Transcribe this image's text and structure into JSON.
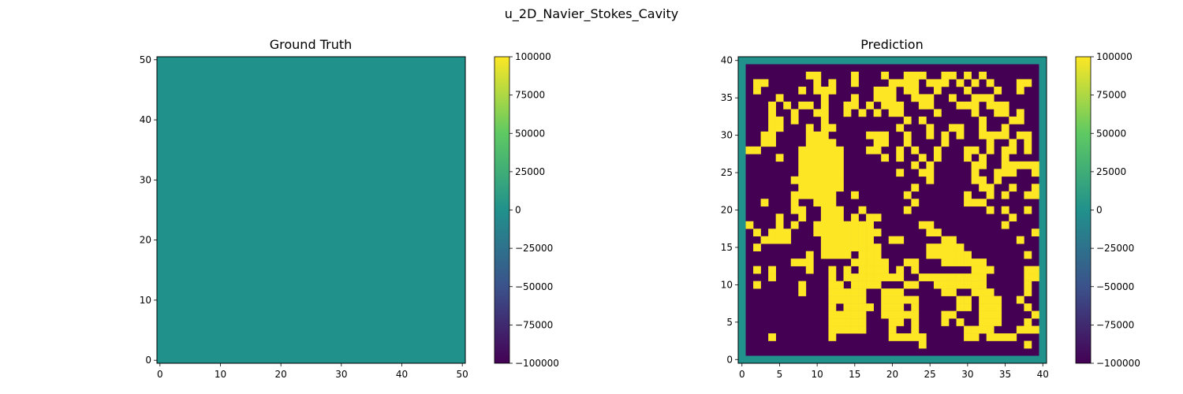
{
  "figure": {
    "title": "u_2D_Navier_Stokes_Cavity"
  },
  "colormap": {
    "name": "viridis",
    "stops": [
      "#440154",
      "#3b528b",
      "#21918c",
      "#5ec962",
      "#fde725"
    ]
  },
  "chart_data": [
    {
      "type": "heatmap",
      "title": "Ground Truth",
      "xlim": [
        -0.5,
        50.5
      ],
      "ylim": [
        -0.5,
        50.5
      ],
      "xticks": [
        0,
        10,
        20,
        30,
        40,
        50
      ],
      "yticks": [
        0,
        10,
        20,
        30,
        40,
        50
      ],
      "grid_size": [
        51,
        51
      ],
      "uniform_value": 0,
      "colorbar": {
        "vmin": -100000,
        "vmax": 100000,
        "ticks": [
          100000,
          75000,
          50000,
          25000,
          0,
          -25000,
          -50000,
          -75000,
          -100000
        ],
        "tick_labels": [
          "100000",
          "75000",
          "50000",
          "25000",
          "0",
          "−25000",
          "−50000",
          "−75000",
          "−100000"
        ]
      }
    },
    {
      "type": "heatmap",
      "title": "Prediction",
      "xlim": [
        -0.5,
        40.5
      ],
      "ylim": [
        -0.5,
        40.5
      ],
      "xticks": [
        0,
        5,
        10,
        15,
        20,
        25,
        30,
        35,
        40
      ],
      "yticks": [
        0,
        5,
        10,
        15,
        20,
        25,
        30,
        35,
        40
      ],
      "grid_size": [
        41,
        41
      ],
      "border_value": 0,
      "interior_low": -100000,
      "interior_high": 100000,
      "high_cells_rows_top_to_bottom": [
        "......",
        "........XX....X...X..XXX..XX.X.X.......",
        ".XX......X.X..X....XXXX.XXX.X.X.X...XX.",
        ".X.....X.XXX.....XXX.XX..X...X...X..X..",
        "....X.....X...X..XXX..XXX..X..XXX......",
        "...X.X.XX.X..XX.X.XXX..XX...XXX.XXX....",
        "...X..X..XX..X.X.X.XX....X....X..XX.X..",
        "...XX.X...X..........X.X.......X...XX..",
        "...XX...X.XX........X...X..XX..X..X....",
        "..XX....XXX.....XXX..X..X.X.X..XXXX.XX.",
        "..XX....XXXX.....XX..X....X.....X..X.X.",
        "XX.....XXXXXX...XX..X.X..X...XX.X.XX.X.",
        "....X..XXXXXX.....X.X..X.X...X.X..X....",
        ".......XXXXXX.........X.X.....XX..XXXXX",
        ".......XXXXXX.......X..XX.....X..XXX..X",
        "......XXXXXXX...........X.....XX.X.....",
        ".......XXXXXX.........X........XX..X..X",
        "......XXXXXX..X......X.......X..X.X..XX",
        "..X...X..XXX..........X......XXX.......",
        "......XX..XXX..X.....X..........X.X..X.",
        "....X..X..XXX.X.XX.................X..",
        "X...X.X..XXXXXXXX......XX.........X...",
        ".X.XXX...XXXXXXXXX......XX............X",
        "..XXXX....XXXXXXX..XX.....XX........X..",
        ".X........XXXXXXXX......XXXXX..........",
        "........X.XXXX.XXX......XXXXXX.......X.",
        "......XXX.....XXXXX..XX...XXXXXX.......",
        ".X.X....X..X.X.XXXX.X.X.......XXX....XX",
        "...X.......X.XXXXXXXX..XXXXXXXXX.....XX",
        ".X.....X...XX.XXXX...XX..XXXXXXX.....X.",
        ".......X...XXXXX..XXX.....XX..XXX....X.",
        "...........XXXXX..XXXXX.....XX.XXX..X..",
        "...........X.XXXX.XXX.X.....XX.XXX...X.",
        "...........XXXXX..XXXXX...XX...XXX....X",
        "...........XXXXX...XX.X...X.X..XXX...X.",
        "...........XXXXX...X..X......XXXX...XXX",
        "...X.......X.......XXXXX.....XX.XXXX...",
        ".......................X.............X.",
        "......"
      ],
      "colorbar": {
        "vmin": -100000,
        "vmax": 100000,
        "ticks": [
          100000,
          75000,
          50000,
          25000,
          0,
          -25000,
          -50000,
          -75000,
          -100000
        ],
        "tick_labels": [
          "100000",
          "75000",
          "50000",
          "25000",
          "0",
          "−25000",
          "−50000",
          "−75000",
          "−100000"
        ]
      }
    }
  ]
}
